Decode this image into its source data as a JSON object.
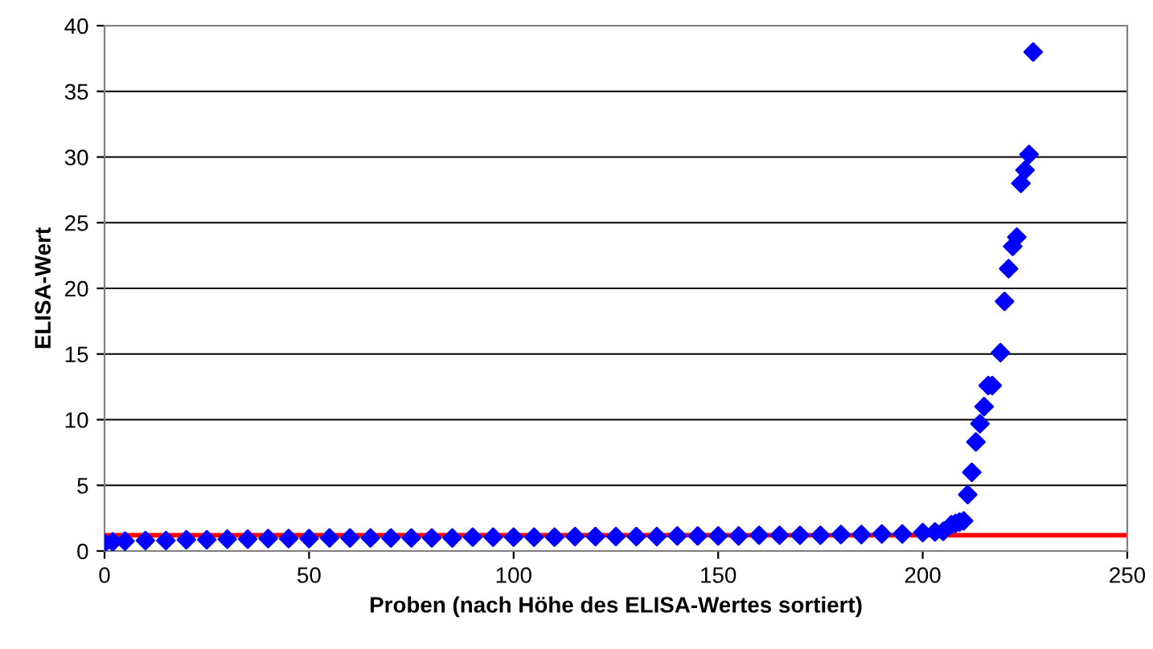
{
  "chart_data": {
    "type": "scatter",
    "xlabel": "Proben (nach Höhe des ELISA-Wertes sortiert)",
    "ylabel": "ELISA-Wert",
    "series": [
      {
        "color": "#0000ff",
        "x": [
          0,
          2,
          5,
          10,
          15,
          20,
          25,
          30,
          35,
          40,
          45,
          50,
          55,
          60,
          65,
          70,
          75,
          80,
          85,
          90,
          95,
          100,
          105,
          110,
          115,
          120,
          125,
          130,
          135,
          140,
          145,
          150,
          155,
          160,
          165,
          170,
          175,
          180,
          185,
          190,
          195,
          200,
          203,
          205,
          207,
          208,
          209,
          210,
          211,
          212,
          213,
          214,
          215,
          216,
          217,
          219,
          220,
          221,
          222,
          223,
          224,
          225,
          226,
          227
        ],
        "values": [
          0.6,
          0.7,
          0.75,
          0.8,
          0.8,
          0.85,
          0.85,
          0.9,
          0.9,
          0.95,
          0.95,
          0.95,
          1.0,
          1.0,
          1.0,
          1.0,
          1.0,
          1.0,
          1.0,
          1.05,
          1.05,
          1.05,
          1.05,
          1.05,
          1.1,
          1.1,
          1.1,
          1.1,
          1.1,
          1.15,
          1.15,
          1.15,
          1.15,
          1.2,
          1.2,
          1.2,
          1.2,
          1.25,
          1.25,
          1.3,
          1.3,
          1.4,
          1.45,
          1.5,
          2.0,
          2.1,
          2.2,
          2.3,
          4.3,
          6.0,
          8.3,
          9.7,
          11.0,
          12.6,
          12.6,
          15.1,
          19.0,
          21.5,
          23.2,
          23.9,
          28.0,
          29.0,
          30.2,
          38.0
        ]
      }
    ],
    "ref_lines": [
      {
        "axis": "y",
        "value": 1.2,
        "color": "#ff0000"
      }
    ],
    "xlim": [
      0,
      250
    ],
    "xticks": [
      0,
      50,
      100,
      150,
      200,
      250
    ],
    "ylim": [
      0,
      40
    ],
    "yticks": [
      0,
      5,
      10,
      15,
      20,
      25,
      30,
      35,
      40
    ],
    "grid": "y",
    "marker": "diamond",
    "legend": false
  }
}
